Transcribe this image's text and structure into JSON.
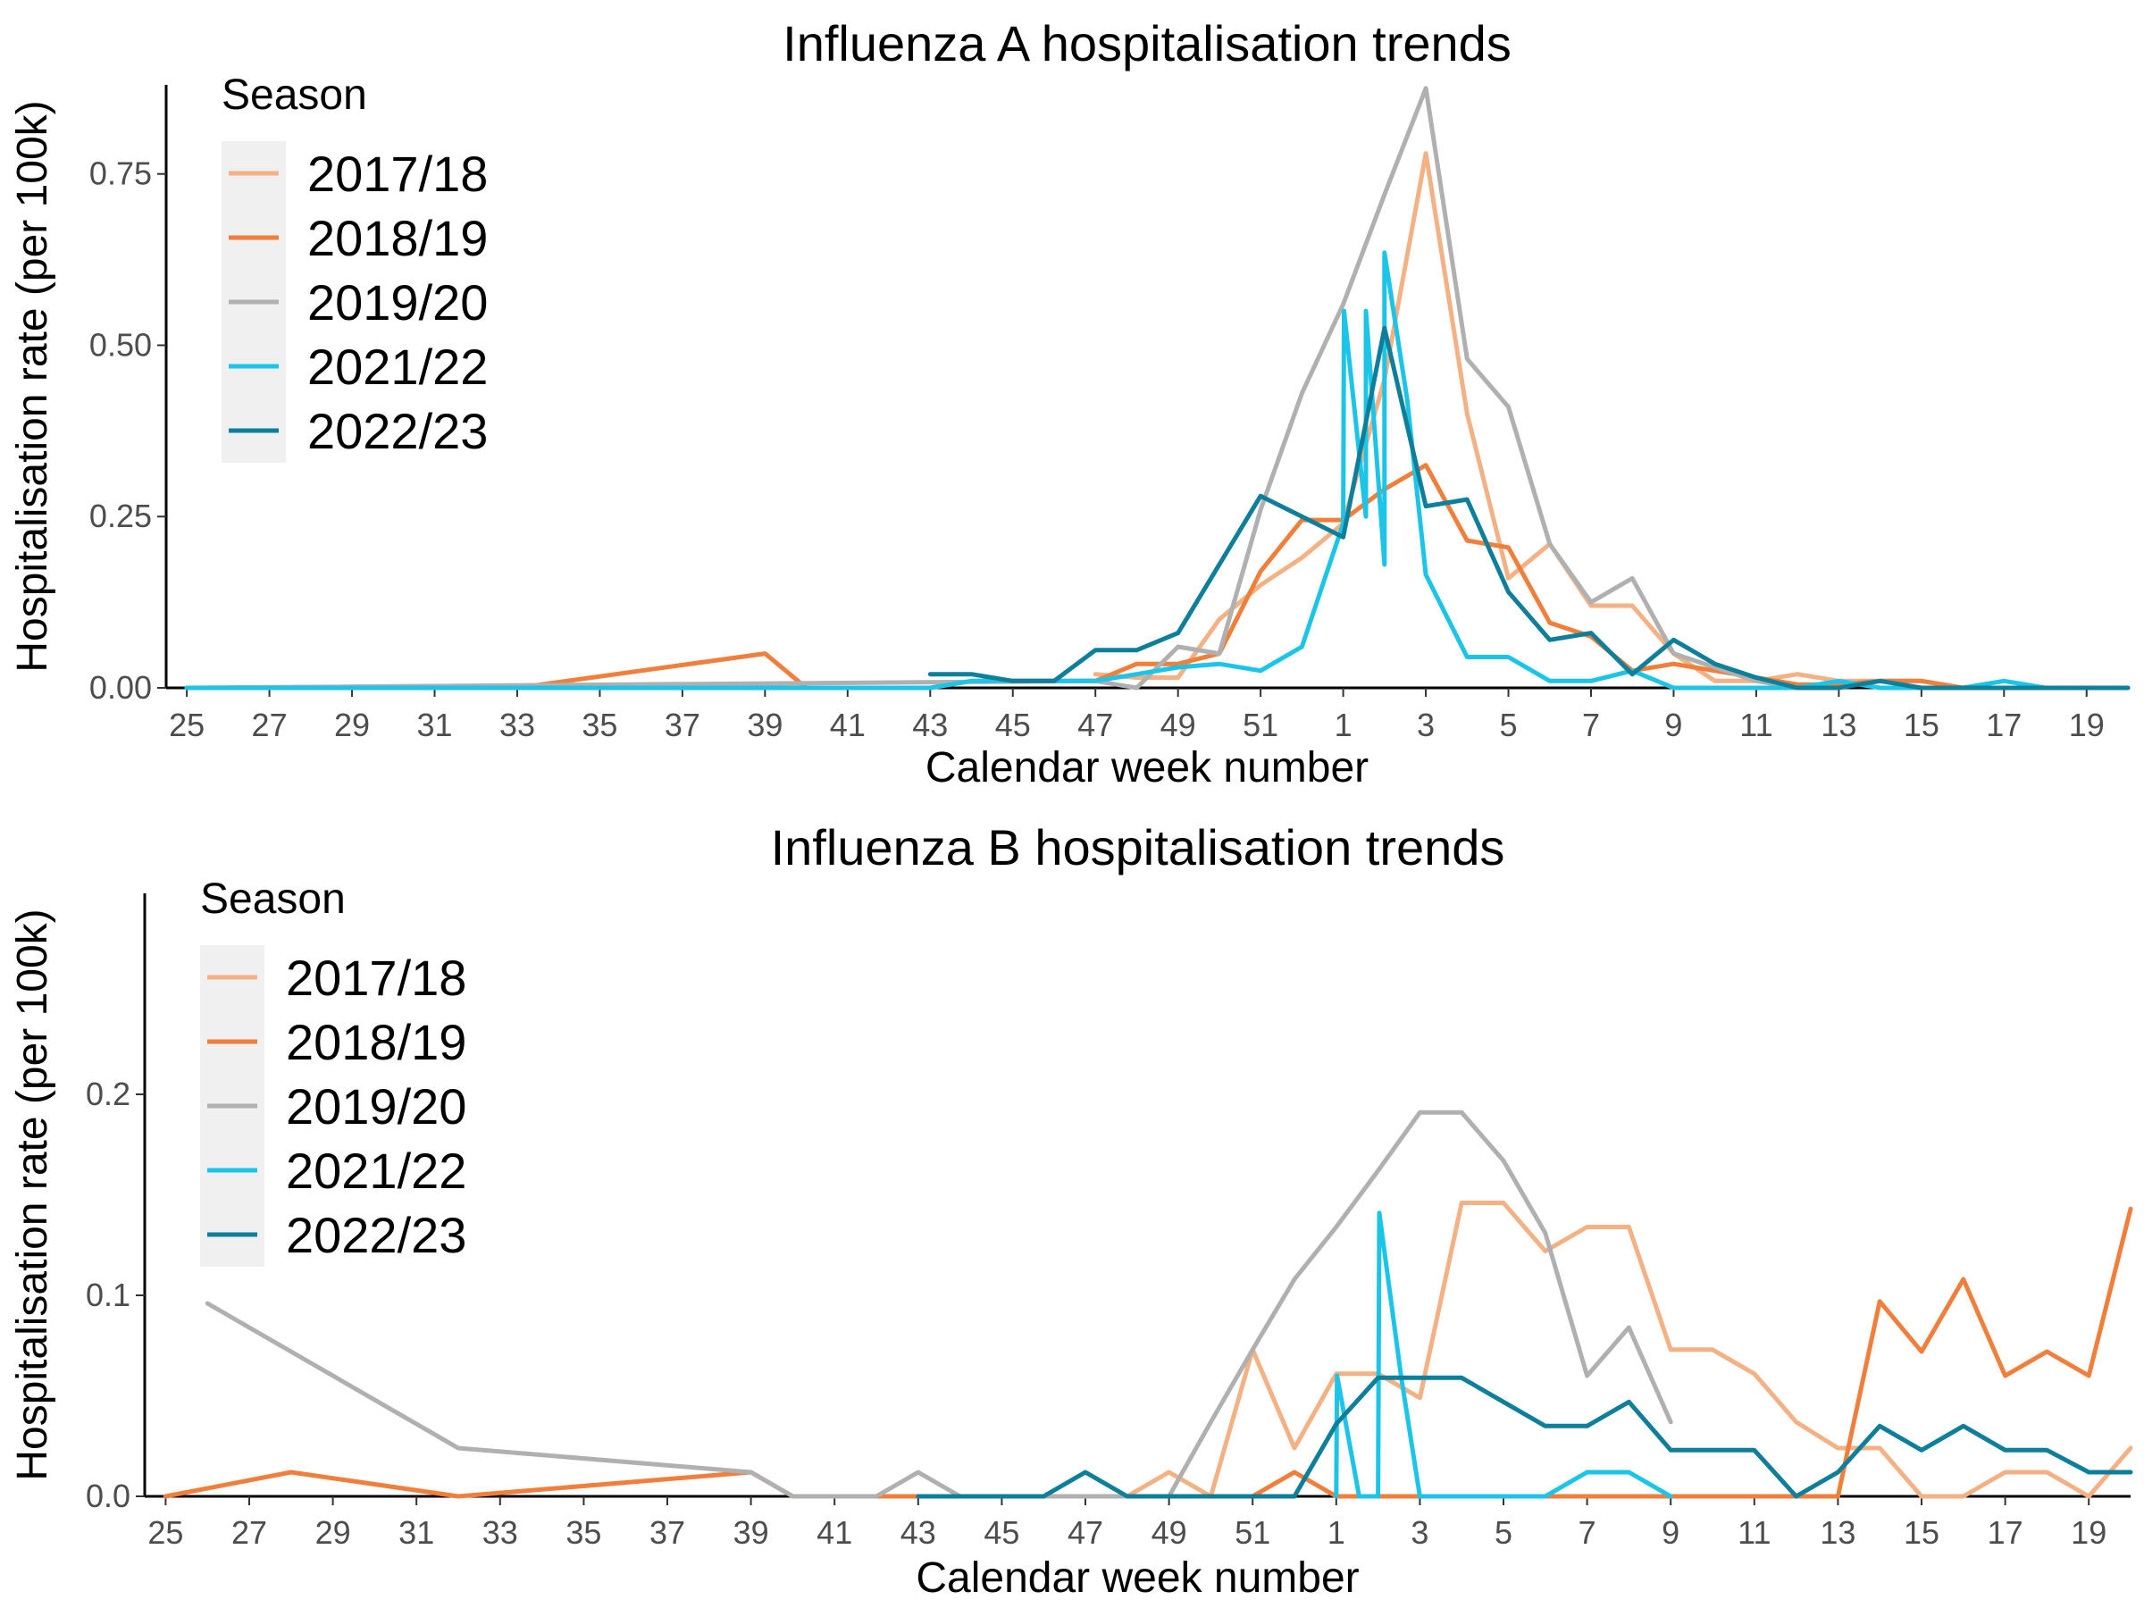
{
  "chart_data": [
    {
      "type": "line",
      "title": "Influenza A hospitalisation trends",
      "xlabel": "Calendar week number",
      "ylabel": "Hospitalisation rate (per 100k)",
      "ylim": [
        0,
        0.88
      ],
      "yticks": [
        0,
        0.25,
        0.5,
        0.75
      ],
      "ytick_labels": [
        "0.00",
        "0.25",
        "0.50",
        "0.75"
      ],
      "xtick_labels": [
        "25",
        "27",
        "29",
        "31",
        "33",
        "35",
        "37",
        "39",
        "41",
        "43",
        "45",
        "47",
        "49",
        "51",
        "1",
        "3",
        "5",
        "7",
        "9",
        "11",
        "13",
        "15",
        "17",
        "19"
      ],
      "grid": false,
      "legend_title": "Season",
      "legend_position": "top-left",
      "series": [
        {
          "name": "2017/18",
          "color": "#f4b183",
          "x": [
            "47",
            "48",
            "49",
            "50",
            "51",
            "52",
            "1",
            "2",
            "3",
            "4",
            "5",
            "6",
            "7",
            "8",
            "9",
            "10",
            "11",
            "12",
            "13",
            "14",
            "15",
            "16"
          ],
          "y": [
            0.02,
            0.015,
            0.015,
            0.1,
            0.15,
            0.19,
            0.24,
            0.45,
            0.78,
            0.4,
            0.16,
            0.21,
            0.12,
            0.12,
            0.05,
            0.01,
            0.01,
            0.02,
            0.01,
            0.01,
            0.01,
            0
          ]
        },
        {
          "name": "2018/19",
          "color": "#f07f3c",
          "x": [
            "25",
            "33",
            "39",
            "40",
            "43",
            "44",
            "45",
            "46",
            "47",
            "48",
            "49",
            "50",
            "51",
            "52",
            "1",
            "2",
            "3",
            "4",
            "5",
            "6",
            "7",
            "8",
            "9",
            "10",
            "11",
            "12",
            "13",
            "14",
            "15",
            "16"
          ],
          "y": [
            0,
            0,
            0.05,
            0,
            0,
            0.01,
            0.01,
            0.01,
            0.01,
            0.035,
            0.035,
            0.05,
            0.17,
            0.245,
            0.245,
            0.29,
            0.325,
            0.215,
            0.205,
            0.095,
            0.075,
            0.025,
            0.035,
            0.025,
            0.015,
            0.005,
            0.005,
            0.01,
            0.01,
            0
          ]
        },
        {
          "name": "2019/20",
          "color": "#b0b0b0",
          "x": [
            "25",
            "47",
            "48",
            "49",
            "50",
            "51",
            "52",
            "1",
            "2",
            "3",
            "4",
            "5",
            "6",
            "7",
            "8",
            "9",
            "10",
            "11",
            "12",
            "13"
          ],
          "y": [
            0,
            0.01,
            0,
            0.06,
            0.05,
            0.26,
            0.43,
            0.56,
            0.72,
            0.875,
            0.48,
            0.41,
            0.21,
            0.125,
            0.16,
            0.05,
            0.03,
            0.01,
            0,
            0
          ]
        },
        {
          "name": "2021/22",
          "color": "#1cc5e8",
          "x": [
            "25",
            "43",
            "44",
            "45",
            "46",
            "47",
            "48",
            "49",
            "50",
            "51",
            "52",
            "1",
            "1.02",
            "1.55",
            "1.55",
            "2",
            "2",
            "2.55",
            "3",
            "4",
            "5",
            "6",
            "7",
            "8",
            "9",
            "10",
            "11",
            "12",
            "13",
            "14",
            "15",
            "16",
            "17",
            "18",
            "19",
            "20"
          ],
          "y": [
            0,
            0,
            0.01,
            0.01,
            0.01,
            0.01,
            0.02,
            0.03,
            0.035,
            0.025,
            0.06,
            0.24,
            0.55,
            0.25,
            0.55,
            0.18,
            0.635,
            0.42,
            0.165,
            0.045,
            0.045,
            0.01,
            0.01,
            0.025,
            0,
            0,
            0,
            0,
            0.01,
            0,
            0,
            0,
            0.01,
            0,
            0,
            0
          ]
        },
        {
          "name": "2022/23",
          "color": "#0e7f9b",
          "x": [
            "43",
            "44",
            "45",
            "46",
            "47",
            "48",
            "49",
            "50",
            "51",
            "52",
            "1",
            "2",
            "3",
            "4",
            "5",
            "6",
            "7",
            "8",
            "9",
            "10",
            "11",
            "12",
            "13",
            "14",
            "15",
            "16",
            "17",
            "18",
            "19",
            "20"
          ],
          "y": [
            0.02,
            0.02,
            0.01,
            0.01,
            0.055,
            0.055,
            0.08,
            0.18,
            0.28,
            0.25,
            0.22,
            0.525,
            0.265,
            0.275,
            0.14,
            0.07,
            0.08,
            0.02,
            0.07,
            0.035,
            0.015,
            0,
            0,
            0.01,
            0,
            0,
            0,
            0,
            0,
            0
          ]
        }
      ]
    },
    {
      "type": "line",
      "title": "Influenza B hospitalisation trends",
      "xlabel": "Calendar week number",
      "ylabel": "Hospitalisation rate (per 100k)",
      "ylim": [
        0,
        0.3
      ],
      "yticks": [
        0,
        0.1,
        0.2
      ],
      "ytick_labels": [
        "0.0",
        "0.1",
        "0.2"
      ],
      "xtick_labels": [
        "25",
        "27",
        "29",
        "31",
        "33",
        "35",
        "37",
        "39",
        "41",
        "43",
        "45",
        "47",
        "49",
        "51",
        "1",
        "3",
        "5",
        "7",
        "9",
        "11",
        "13",
        "15",
        "17",
        "19"
      ],
      "grid": false,
      "legend_title": "Season",
      "legend_position": "top-left",
      "series": [
        {
          "name": "2017/18",
          "color": "#f4b183",
          "x": [
            "48",
            "49",
            "50",
            "51",
            "52",
            "1",
            "2",
            "3",
            "4",
            "5",
            "6",
            "7",
            "8",
            "9",
            "10",
            "11",
            "12",
            "13",
            "14",
            "15",
            "16",
            "17",
            "18",
            "19",
            "20"
          ],
          "y": [
            0,
            0.012,
            0,
            0.073,
            0.024,
            0.061,
            0.061,
            0.049,
            0.146,
            0.146,
            0.122,
            0.134,
            0.134,
            0.073,
            0.073,
            0.061,
            0.037,
            0.024,
            0.024,
            0,
            0,
            0.012,
            0.012,
            0,
            0.024
          ]
        },
        {
          "name": "2018/19",
          "color": "#f07f3c",
          "x": [
            "25",
            "28",
            "32",
            "39",
            "40",
            "51",
            "52",
            "1",
            "13",
            "14",
            "15",
            "16",
            "17",
            "18",
            "19",
            "20"
          ],
          "y": [
            0,
            0.012,
            0,
            0.012,
            0,
            0,
            0.012,
            0,
            0,
            0.097,
            0.072,
            0.108,
            0.06,
            0.072,
            0.06,
            0.143
          ]
        },
        {
          "name": "2019/20",
          "color": "#b0b0b0",
          "x": [
            "26",
            "32",
            "39",
            "40",
            "42",
            "43",
            "44",
            "49",
            "50",
            "51",
            "52",
            "1",
            "2",
            "3",
            "4",
            "5",
            "6",
            "7",
            "8",
            "9"
          ],
          "y": [
            0.096,
            0.024,
            0.012,
            0,
            0,
            0.012,
            0,
            0,
            0.037,
            0.073,
            0.108,
            0.134,
            0.162,
            0.191,
            0.191,
            0.167,
            0.131,
            0.06,
            0.084,
            0.037
          ]
        },
        {
          "name": "2021/22",
          "color": "#1cc5e8",
          "x": [
            "1",
            "1.02",
            "1.55",
            "2",
            "2.03",
            "2.55",
            "3",
            "6",
            "7",
            "8",
            "9"
          ],
          "y": [
            0,
            0.06,
            0,
            0,
            0.141,
            0.06,
            0,
            0,
            0.012,
            0.012,
            0
          ]
        },
        {
          "name": "2022/23",
          "color": "#0e7f9b",
          "x": [
            "43",
            "46",
            "47",
            "48",
            "52",
            "1",
            "2",
            "3",
            "4",
            "5",
            "6",
            "7",
            "8",
            "9",
            "10",
            "11",
            "12",
            "13",
            "14",
            "15",
            "16",
            "17",
            "18",
            "19",
            "20"
          ],
          "y": [
            0,
            0,
            0.012,
            0,
            0,
            0.036,
            0.059,
            0.059,
            0.059,
            0.047,
            0.035,
            0.035,
            0.047,
            0.023,
            0.023,
            0.023,
            0,
            0.012,
            0.035,
            0.023,
            0.035,
            0.023,
            0.023,
            0.012,
            0.012
          ]
        }
      ]
    }
  ]
}
